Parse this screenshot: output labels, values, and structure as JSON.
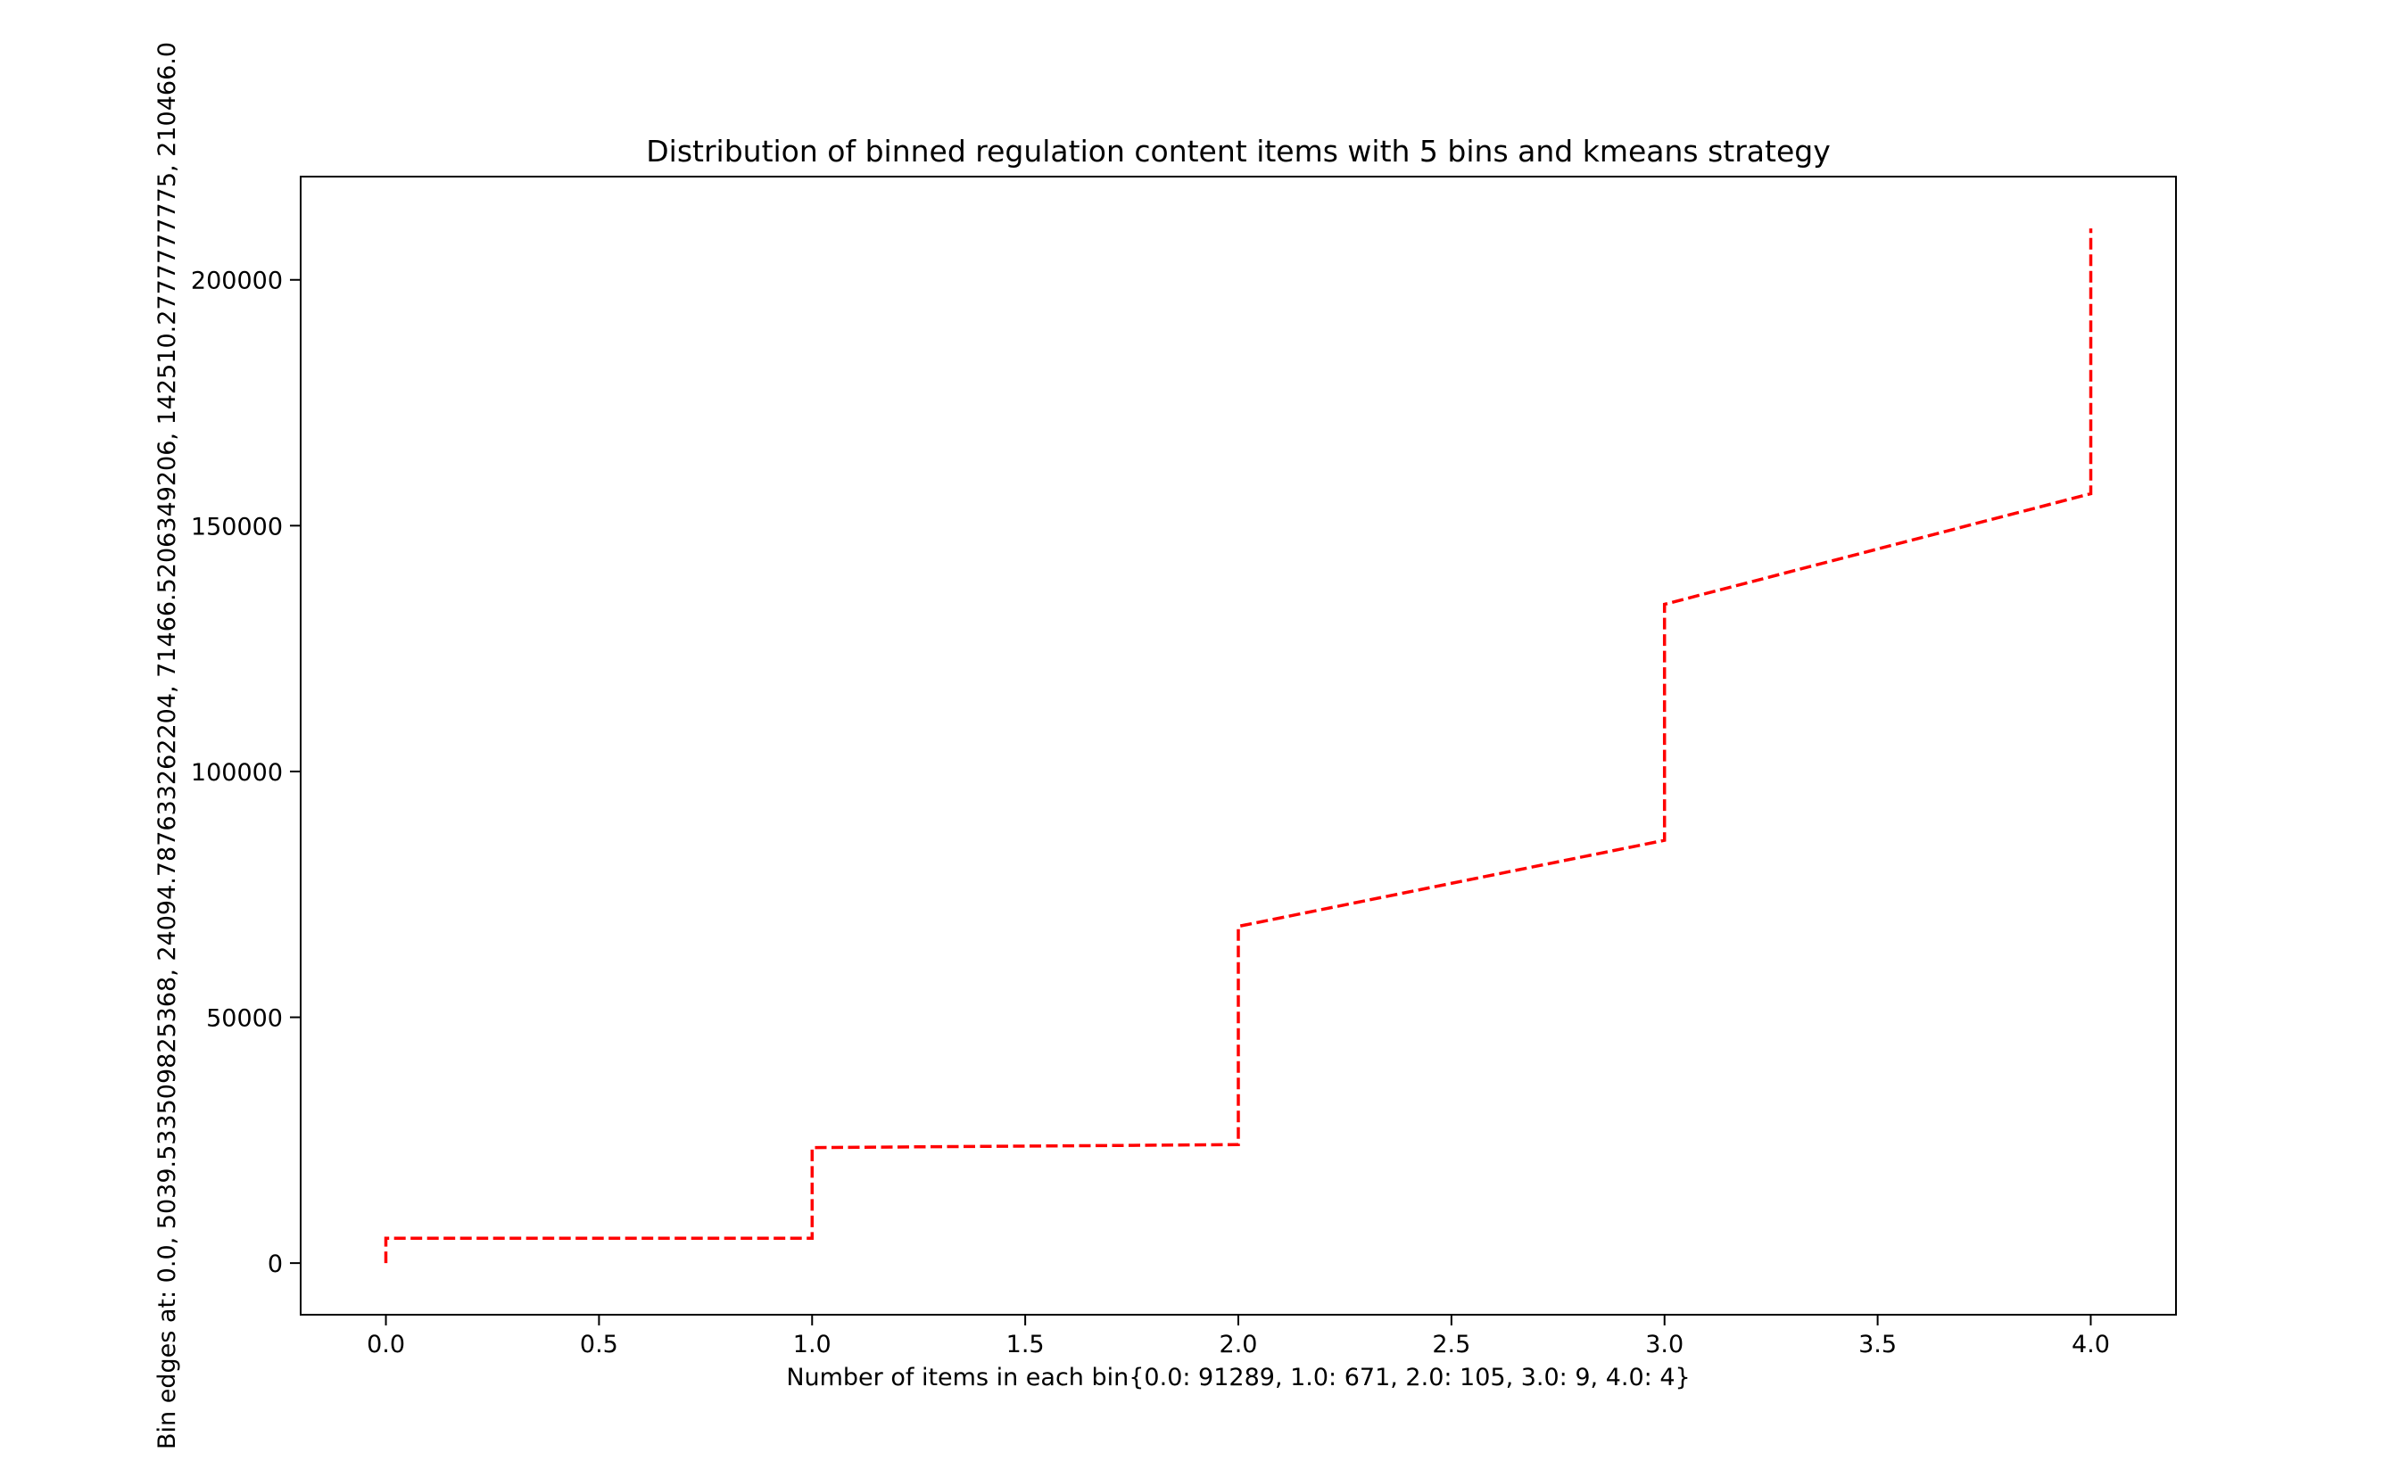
{
  "chart_data": {
    "type": "line",
    "title": "Distribution of binned regulation content items with 5 bins and kmeans strategy",
    "xlabel": "Number of items in each bin{0.0: 91289, 1.0: 671, 2.0: 105, 3.0: 9, 4.0: 4}",
    "ylabel": "Bin edges at: 0.0, 5039.533509825368, 24094.787633262204, 71466.5206349206, 142510.2777777775, 210466.0",
    "xlim": [
      -0.2,
      4.2
    ],
    "ylim": [
      -10500,
      221000
    ],
    "x_ticks": [
      0.0,
      0.5,
      1.0,
      1.5,
      2.0,
      2.5,
      3.0,
      3.5,
      4.0
    ],
    "x_tick_labels": [
      "0.0",
      "0.5",
      "1.0",
      "1.5",
      "2.0",
      "2.5",
      "3.0",
      "3.5",
      "4.0"
    ],
    "y_ticks": [
      0,
      50000,
      100000,
      150000,
      200000
    ],
    "y_tick_labels": [
      "0",
      "50000",
      "100000",
      "150000",
      "200000"
    ],
    "grid": false,
    "series": [
      {
        "color": "#ff0000",
        "line_style": "dashed",
        "points": [
          [
            0.0,
            0
          ],
          [
            0.0,
            5039.5
          ],
          [
            1.0,
            5039.5
          ],
          [
            1.0,
            23500
          ],
          [
            2.0,
            24094.8
          ],
          [
            2.0,
            68500
          ],
          [
            3.0,
            86000
          ],
          [
            3.0,
            134000
          ],
          [
            4.0,
            156500
          ],
          [
            4.0,
            210466
          ]
        ]
      }
    ]
  }
}
